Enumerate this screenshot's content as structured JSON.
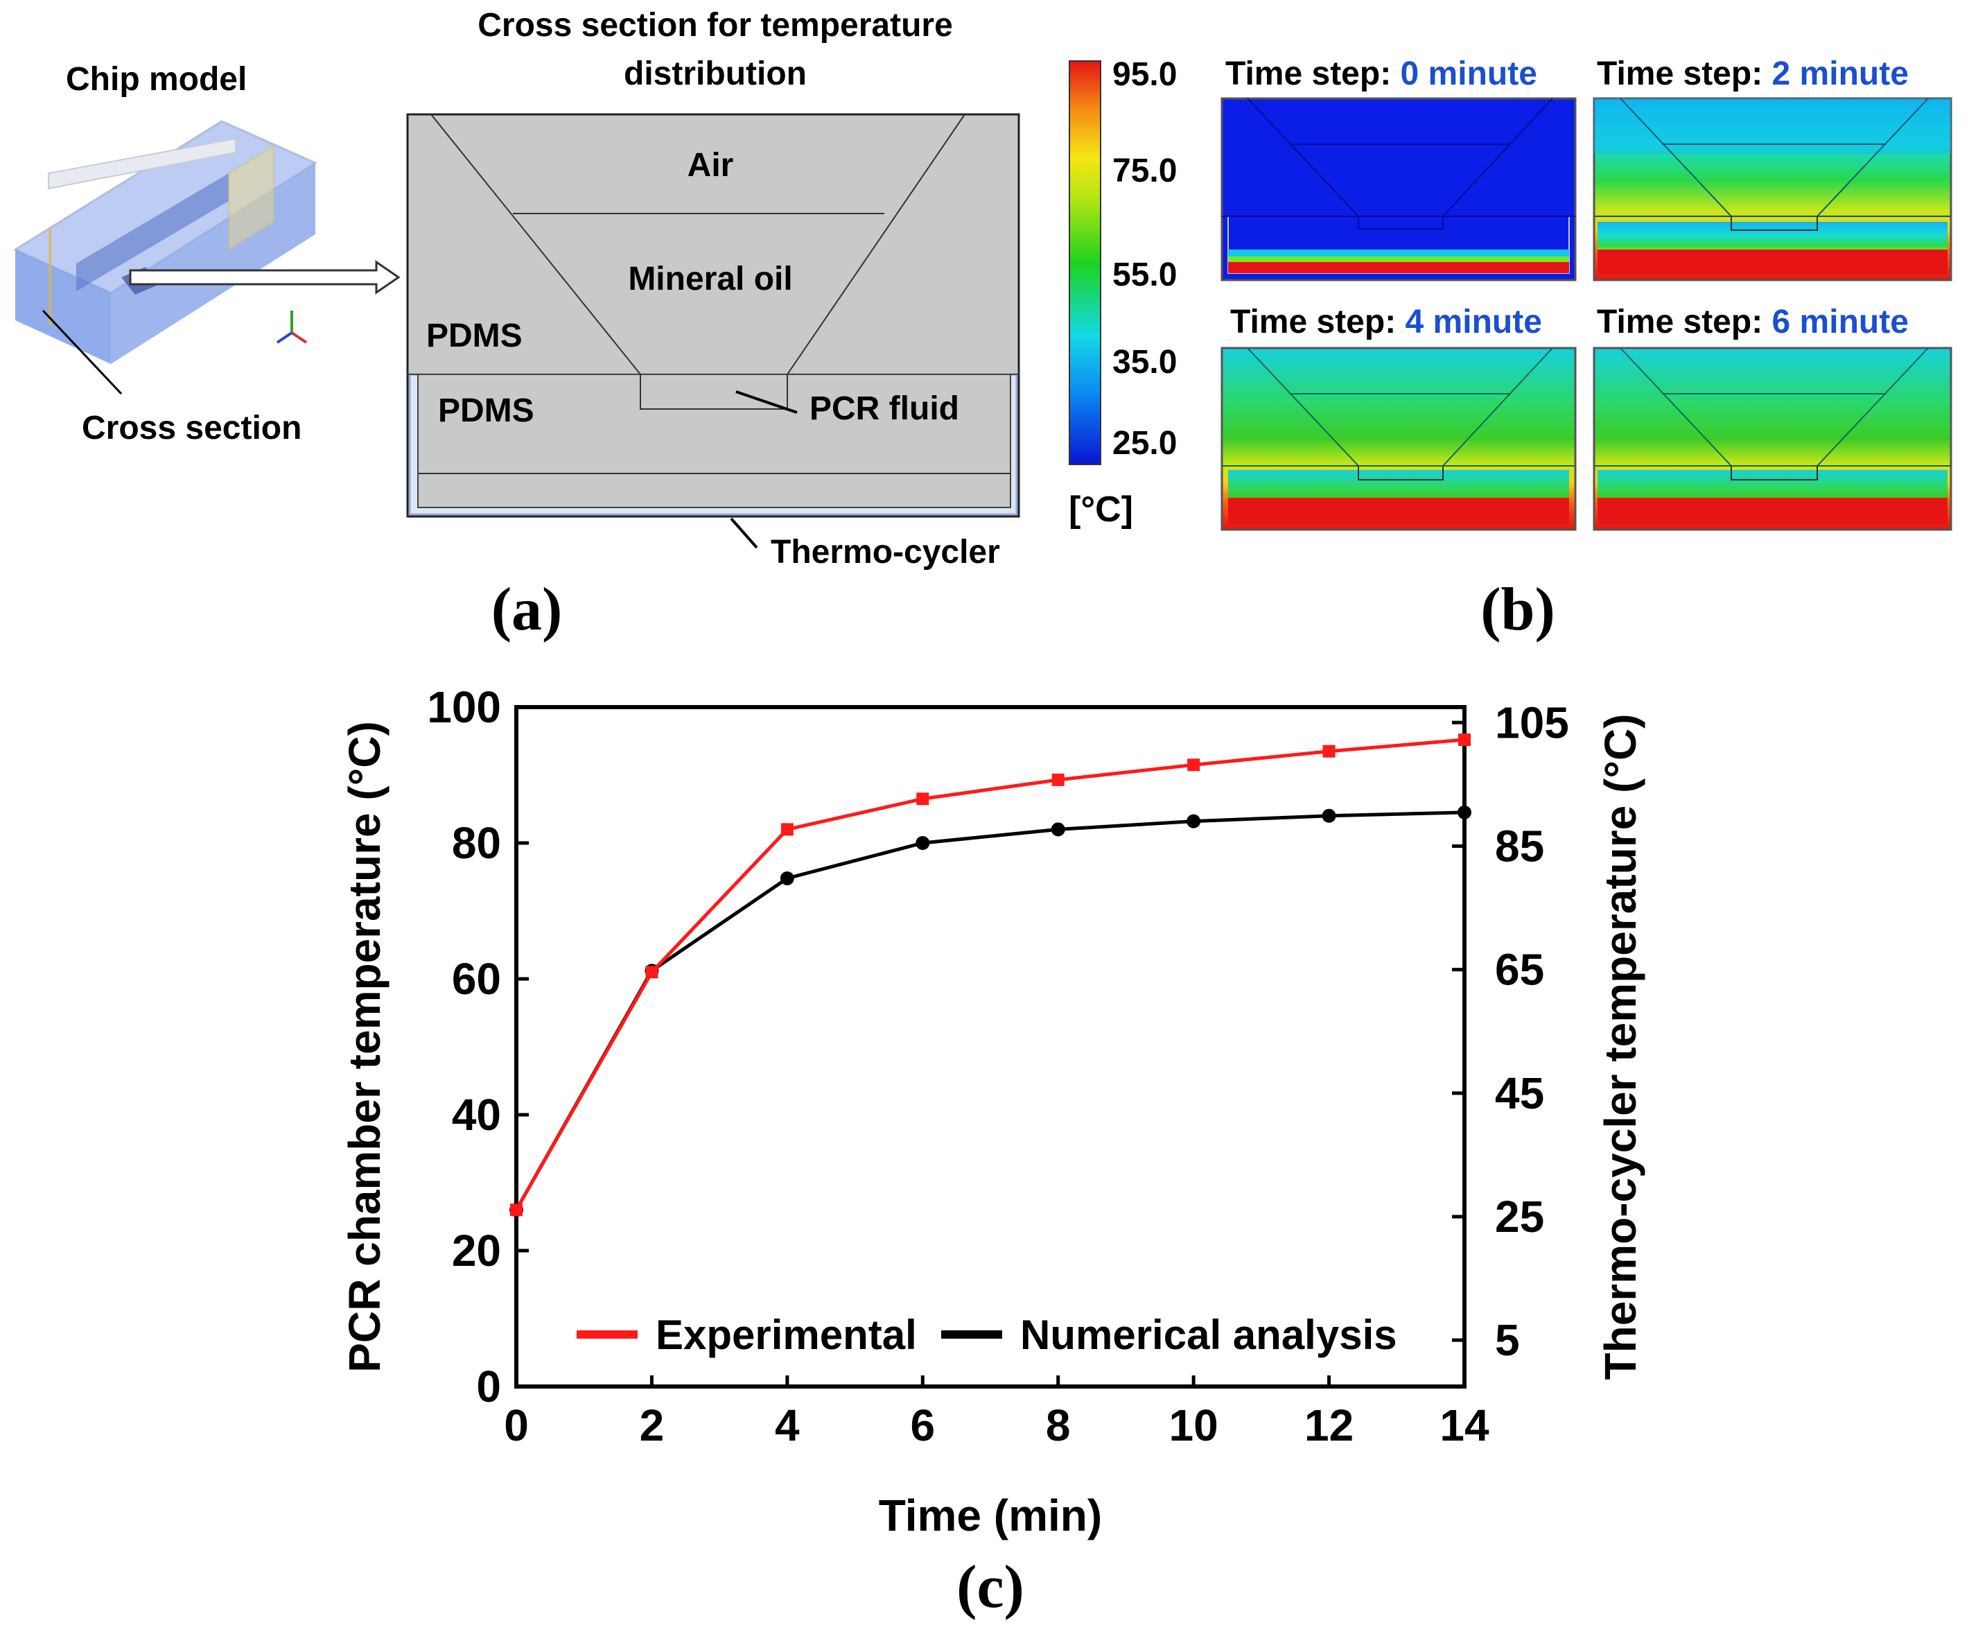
{
  "colors": {
    "experimental": "#ff1a1a",
    "numerical": "#000000",
    "time_blue": "#1a4fcf",
    "section_gray": "#c9c9c9",
    "chip_blue": "#7e9ee6"
  },
  "panel_a": {
    "chip_model_label": "Chip model",
    "cross_section_label": "Cross section",
    "title_line1": "Cross section for temperature",
    "title_line2": "distribution",
    "regions": {
      "air": "Air",
      "mineral_oil": "Mineral oil",
      "pdms_upper": "PDMS",
      "pdms_lower": "PDMS",
      "pcr_fluid": "PCR fluid",
      "thermo_cycler": "Thermo-cycler"
    },
    "panel_label": "(a)"
  },
  "panel_b": {
    "colorbar_ticks": [
      "95.0",
      "75.0",
      "55.0",
      "35.0",
      "25.0"
    ],
    "colorbar_unit": "[°C]",
    "time_prefix": "Time step: ",
    "steps": [
      {
        "value": "0 minute"
      },
      {
        "value": "2 minute"
      },
      {
        "value": "4 minute"
      },
      {
        "value": "6 minute"
      }
    ],
    "panel_label": "(b)"
  },
  "chart_data": {
    "type": "line",
    "xlabel": "Time (min)",
    "ylabel_left": "PCR chamber temperature (°C)",
    "ylabel_right": "Thermo-cycler temperature (°C)",
    "x": [
      0,
      2,
      4,
      6,
      8,
      10,
      12,
      14
    ],
    "xticks": [
      "0",
      "2",
      "4",
      "6",
      "8",
      "10",
      "12",
      "14"
    ],
    "xlim": [
      0,
      14
    ],
    "ylim_left": [
      0,
      100
    ],
    "yticks_left": [
      "0",
      "20",
      "40",
      "60",
      "80",
      "100"
    ],
    "ylim_right": [
      -2.5,
      107.5
    ],
    "yticks_right": [
      "5",
      "25",
      "45",
      "65",
      "85",
      "105"
    ],
    "series": [
      {
        "name": "Experimental",
        "axis": "left",
        "marker": "square",
        "values": [
          26,
          61,
          82,
          86.5,
          89.3,
          91.5,
          93.5,
          95.2
        ]
      },
      {
        "name": "Numerical analysis",
        "axis": "left",
        "marker": "circle",
        "values": [
          26,
          61.2,
          74.8,
          80,
          82,
          83.2,
          84,
          84.5
        ]
      }
    ],
    "legend_position": "bottom"
  },
  "panel_c": {
    "panel_label": "(c)"
  }
}
